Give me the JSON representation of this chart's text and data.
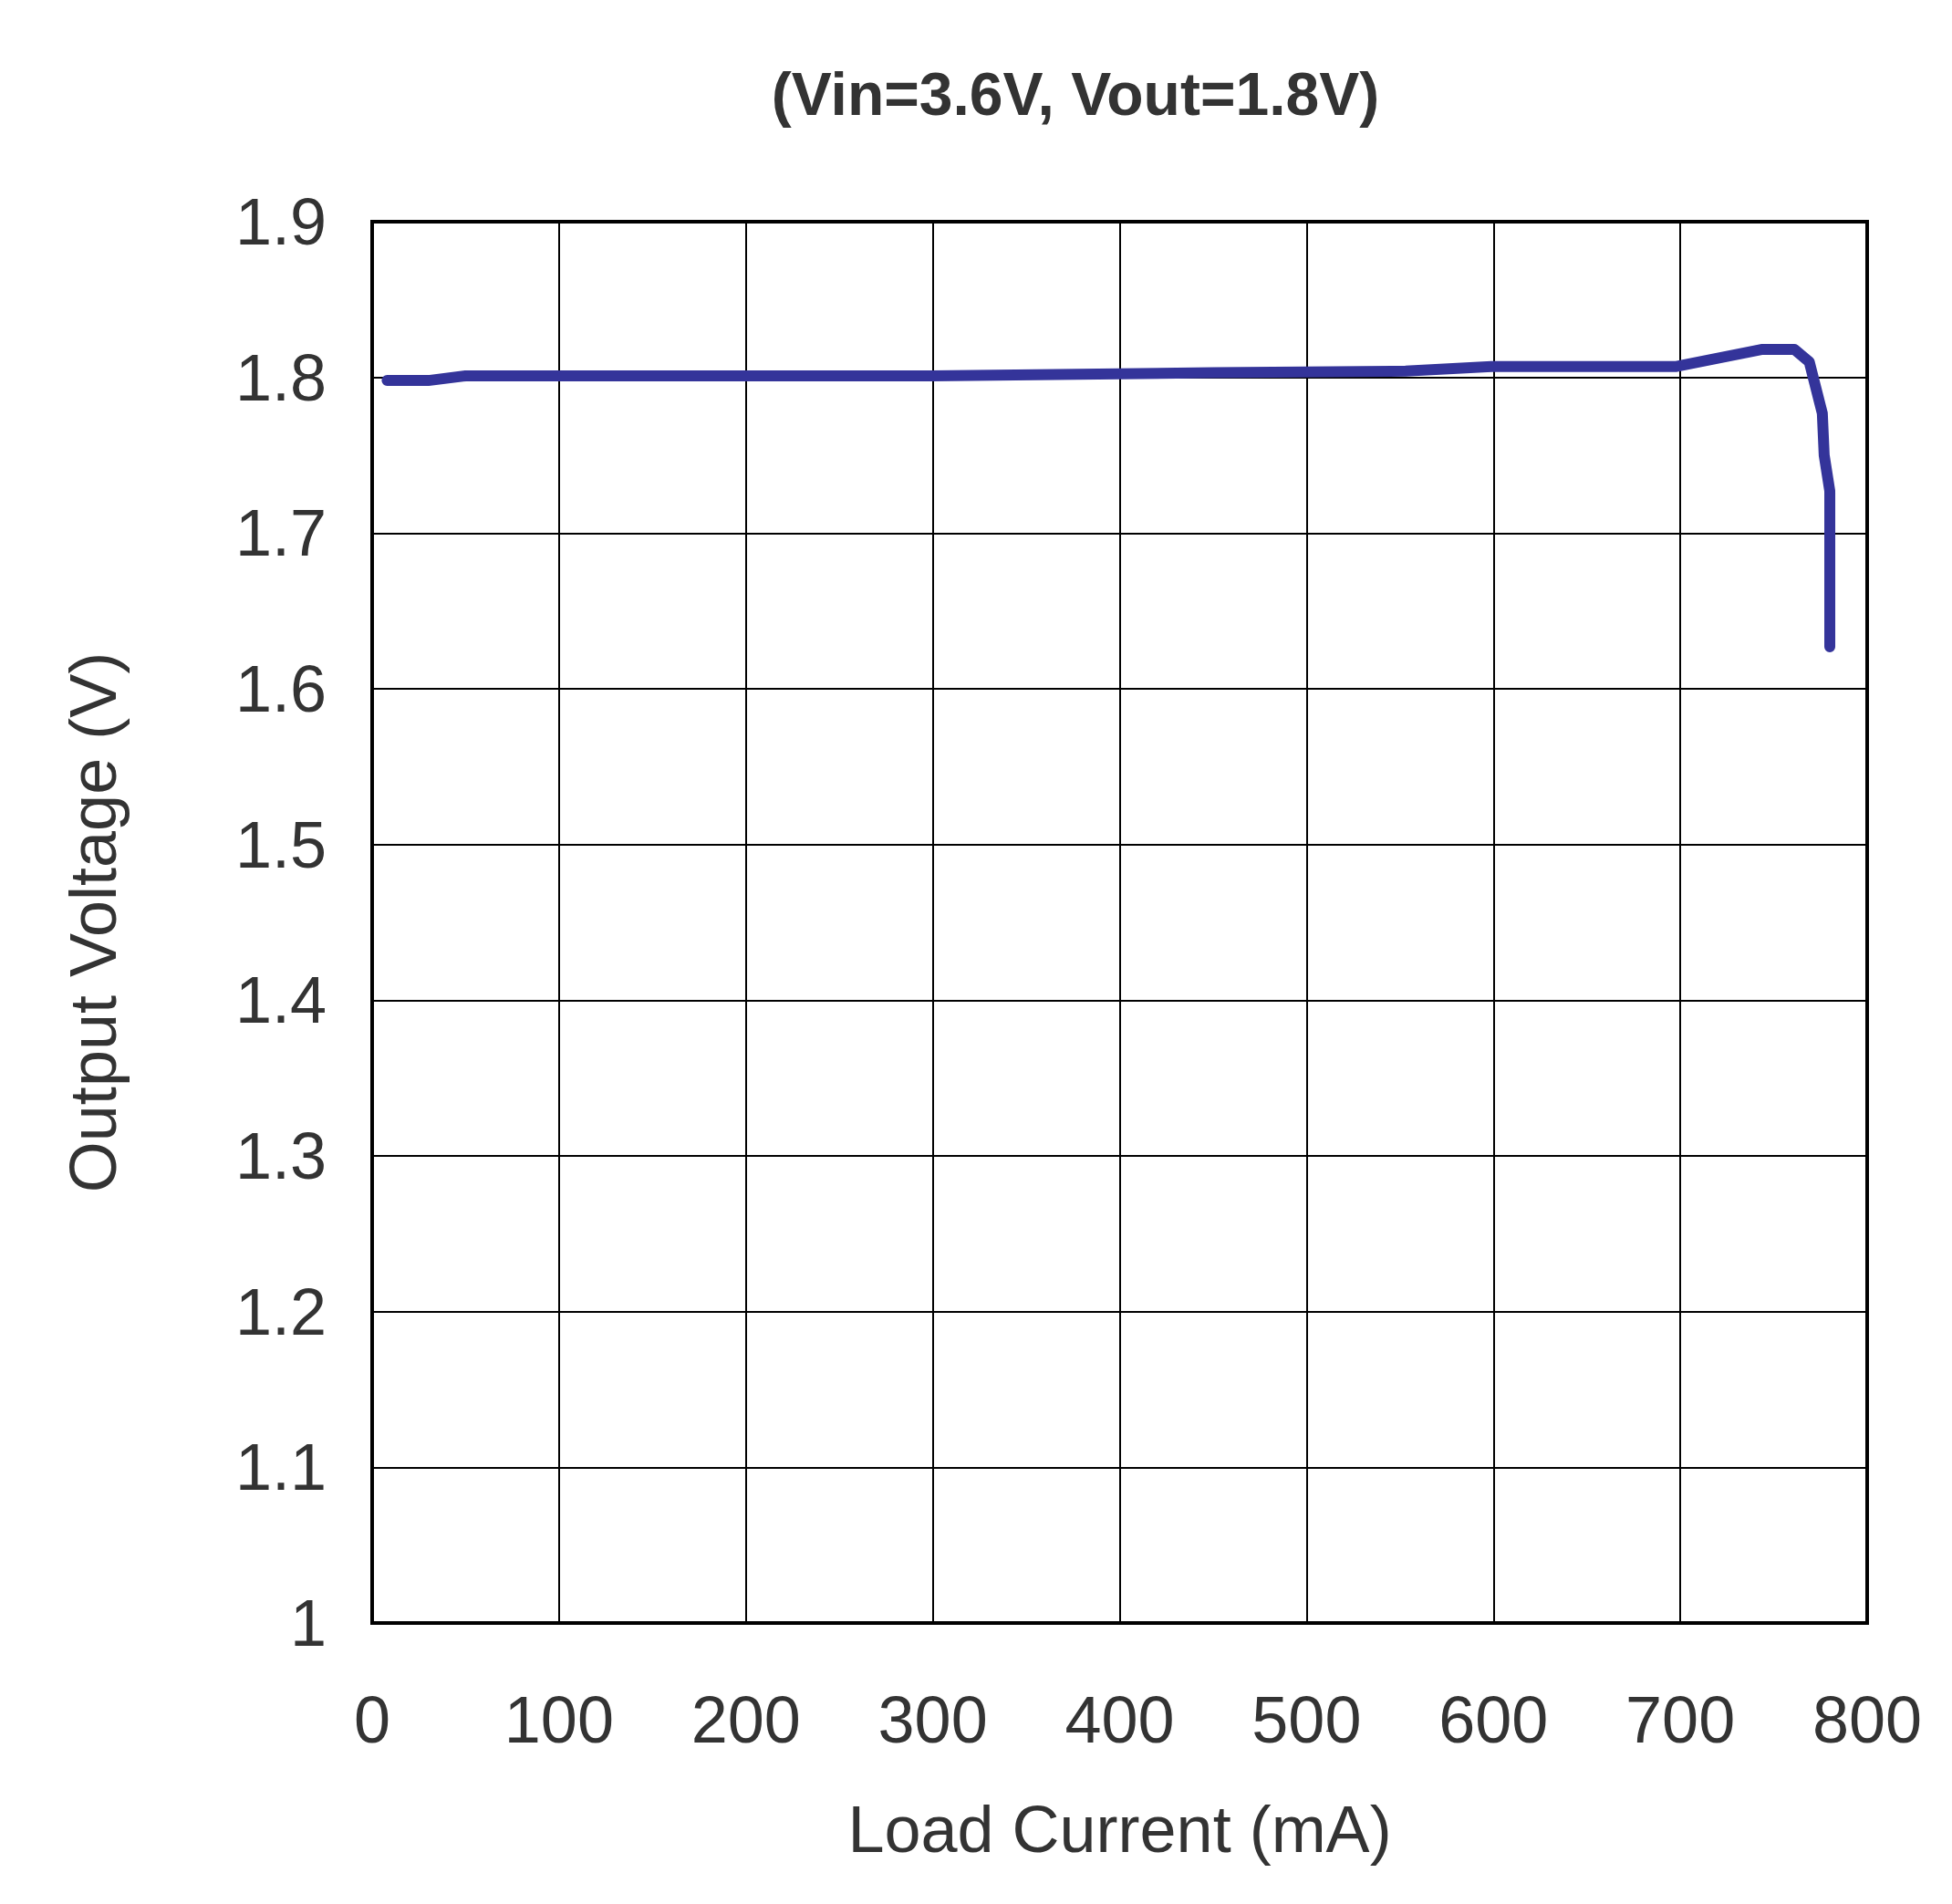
{
  "chart_data": {
    "type": "line",
    "title": "(Vin=3.6V, Vout=1.8V)",
    "xlabel": "Load Current (mA)",
    "ylabel": "Output Voltage (V)",
    "series": [
      {
        "color": "#34349a",
        "x": [
          8,
          30,
          50,
          150,
          300,
          450,
          553,
          599,
          698,
          744,
          761,
          769,
          776,
          777,
          780,
          780
        ],
        "values": [
          1.798,
          1.798,
          1.801,
          1.801,
          1.801,
          1.803,
          1.804,
          1.807,
          1.807,
          1.818,
          1.818,
          1.81,
          1.777,
          1.75,
          1.727,
          1.627
        ]
      }
    ],
    "xlim": [
      0,
      800
    ],
    "xticks": [
      0,
      100,
      200,
      300,
      400,
      500,
      600,
      700,
      800
    ],
    "ylim": [
      1,
      1.9
    ],
    "yticks": [
      1,
      1.1,
      1.2,
      1.3,
      1.4,
      1.5,
      1.6,
      1.7,
      1.8,
      1.9
    ],
    "grid": true,
    "line_style": "solid"
  }
}
